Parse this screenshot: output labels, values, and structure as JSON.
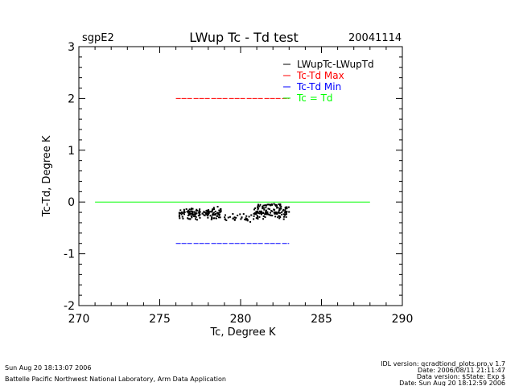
{
  "header": {
    "site": "sgpE2",
    "title": "LWup Tc - Td test",
    "date": "20041114"
  },
  "footer": {
    "left_line1": "Sun Aug 20 18:13:07 2006",
    "left_line2": "Battelle Pacific Northwest National Laboratory, Arm Data Application",
    "right_line1": "IDL version: qcradtiond_plots.pro,v 1.7",
    "right_line2": "Date: 2006/08/11 21:11:47",
    "right_line3": "Data version: $State: Exp $",
    "right_line4": "Date: Sun Aug 20 18:12:59 2006"
  },
  "colors": {
    "scatter": "#000000",
    "max_line": "#ff0000",
    "min_line": "#0000ff",
    "equal_line": "#00ff00",
    "axis": "#000000"
  },
  "chart_data": {
    "type": "scatter",
    "xlabel": "Tc, Degree K",
    "ylabel": "Tc-Td, Degree K",
    "xlim": [
      270,
      290
    ],
    "ylim": [
      -2,
      3
    ],
    "x_ticks": [
      "270",
      "275",
      "280",
      "285",
      "290"
    ],
    "y_ticks": [
      "-2",
      "-1",
      "0",
      "1",
      "2",
      "3"
    ],
    "legend_position": "top-right",
    "legend": [
      {
        "label": "LWupTc-LWupTd",
        "color": "#000000"
      },
      {
        "label": "Tc-Td Max",
        "color": "#ff0000"
      },
      {
        "label": "Tc-Td Min",
        "color": "#0000ff"
      },
      {
        "label": "Tc = Td",
        "color": "#00ff00"
      }
    ],
    "series": [
      {
        "name": "LWupTc-LWupTd",
        "kind": "points",
        "clusters": [
          {
            "x_range": [
              276.2,
              278.8
            ],
            "y_center": -0.22,
            "y_spread": 0.14,
            "count": 150
          },
          {
            "x_range": [
              279.0,
              280.7
            ],
            "y_center": -0.3,
            "y_spread": 0.1,
            "count": 30
          },
          {
            "x_range": [
              280.8,
              283.0
            ],
            "y_center": -0.2,
            "y_spread": 0.14,
            "count": 120
          },
          {
            "x_range": [
              281.0,
              282.5
            ],
            "y_center": -0.06,
            "y_spread": 0.03,
            "count": 25
          }
        ]
      },
      {
        "name": "Tc-Td Max",
        "kind": "line",
        "x": [
          276,
          283
        ],
        "y": [
          2,
          2
        ]
      },
      {
        "name": "Tc-Td Min",
        "kind": "line",
        "x": [
          276,
          283
        ],
        "y": [
          -0.8,
          -0.8
        ]
      },
      {
        "name": "Tc = Td",
        "kind": "line",
        "x": [
          271,
          288
        ],
        "y": [
          0,
          0
        ]
      }
    ]
  }
}
